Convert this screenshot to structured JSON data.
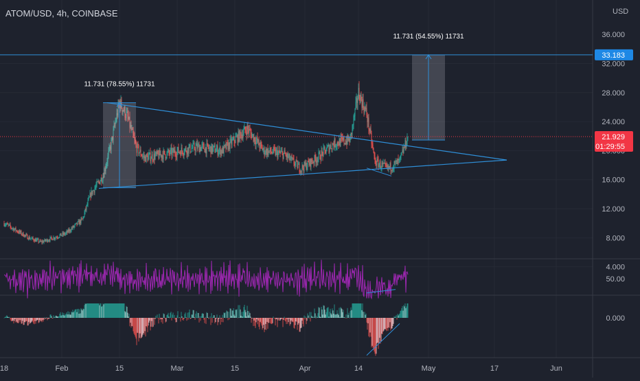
{
  "header": {
    "symbol": "ATOM/USD, 4h, COINBASE",
    "currency": "USD"
  },
  "colors": {
    "background": "#1e222d",
    "grid": "#262a35",
    "up": "#26a69a",
    "down": "#ef5350",
    "drawing": "#2f8fd8",
    "rsi": "#9c27b0",
    "price_badge": "#f23645",
    "target_badge": "#1e88e5"
  },
  "chart_data": [
    {
      "type": "candlestick",
      "pane": "price",
      "y_ticks": [
        "4.000",
        "8.000",
        "12.000",
        "16.000",
        "20.000",
        "24.000",
        "28.000",
        "32.000",
        "36.000"
      ],
      "x_ticks": [
        "18",
        "Feb",
        "15",
        "Mar",
        "15",
        "Apr",
        "14",
        "May",
        "17",
        "Jun"
      ],
      "ylim": [
        0,
        38
      ],
      "grid": true,
      "close_path": [
        {
          "date": "2021-01-18",
          "close": 10.0
        },
        {
          "date": "2021-01-24",
          "close": 8.0
        },
        {
          "date": "2021-01-27",
          "close": 7.4
        },
        {
          "date": "2021-02-02",
          "close": 8.6
        },
        {
          "date": "2021-02-06",
          "close": 10.5
        },
        {
          "date": "2021-02-08",
          "close": 14.0
        },
        {
          "date": "2021-02-11",
          "close": 16.5
        },
        {
          "date": "2021-02-13",
          "close": 21.0
        },
        {
          "date": "2021-02-15",
          "close": 26.7
        },
        {
          "date": "2021-02-17",
          "close": 24.5
        },
        {
          "date": "2021-02-19",
          "close": 20.5
        },
        {
          "date": "2021-02-21",
          "close": 19.0
        },
        {
          "date": "2021-02-26",
          "close": 19.5
        },
        {
          "date": "2021-03-06",
          "close": 20.5
        },
        {
          "date": "2021-03-12",
          "close": 20.0
        },
        {
          "date": "2021-03-18",
          "close": 23.0
        },
        {
          "date": "2021-03-22",
          "close": 20.0
        },
        {
          "date": "2021-03-27",
          "close": 19.5
        },
        {
          "date": "2021-03-31",
          "close": 17.5
        },
        {
          "date": "2021-04-04",
          "close": 19.0
        },
        {
          "date": "2021-04-08",
          "close": 21.0
        },
        {
          "date": "2021-04-12",
          "close": 21.5
        },
        {
          "date": "2021-04-14",
          "close": 28.0
        },
        {
          "date": "2021-04-16",
          "close": 25.0
        },
        {
          "date": "2021-04-18",
          "close": 18.5
        },
        {
          "date": "2021-04-21",
          "close": 17.5
        },
        {
          "date": "2021-04-24",
          "close": 18.5
        },
        {
          "date": "2021-04-26",
          "close": 21.929
        }
      ],
      "current_price": {
        "value": "21.929",
        "countdown": "01:29:55"
      },
      "target_line": {
        "value": "33.183"
      },
      "measure_boxes": [
        {
          "label": "11.731 (78.55%) 11731",
          "start": "2021-02-11",
          "end": "2021-02-19",
          "low": 14.9,
          "high": 26.6
        },
        {
          "label": "11.731 (54.55%) 11731",
          "start": "2021-04-27",
          "end": "2021-05-05",
          "low": 21.45,
          "high": 33.18
        }
      ],
      "triangle": {
        "upper": [
          {
            "date": "2021-02-12",
            "price": 26.6
          },
          {
            "date": "2021-05-20",
            "price": 18.7
          }
        ],
        "lower": [
          {
            "date": "2021-02-10",
            "price": 14.8
          },
          {
            "date": "2021-05-20",
            "price": 18.7
          }
        ]
      },
      "divergence_line": [
        {
          "date": "2021-04-16",
          "price": 17.6
        },
        {
          "date": "2021-04-22",
          "price": 16.5
        }
      ]
    },
    {
      "type": "line",
      "pane": "rsi",
      "y_ticks": [
        "50.00"
      ],
      "ylim": [
        20,
        80
      ],
      "divergence_line": [
        {
          "date": "2021-04-16",
          "value": 34
        },
        {
          "date": "2021-04-23",
          "value": 38
        }
      ]
    },
    {
      "type": "bar",
      "pane": "macd_histogram",
      "y_ticks": [
        "0.000"
      ],
      "ylim": [
        -1.6,
        0.6
      ],
      "divergence_line": [
        {
          "date": "2021-04-16",
          "value": -1.3
        },
        {
          "date": "2021-04-24",
          "value": -0.2
        }
      ]
    }
  ]
}
